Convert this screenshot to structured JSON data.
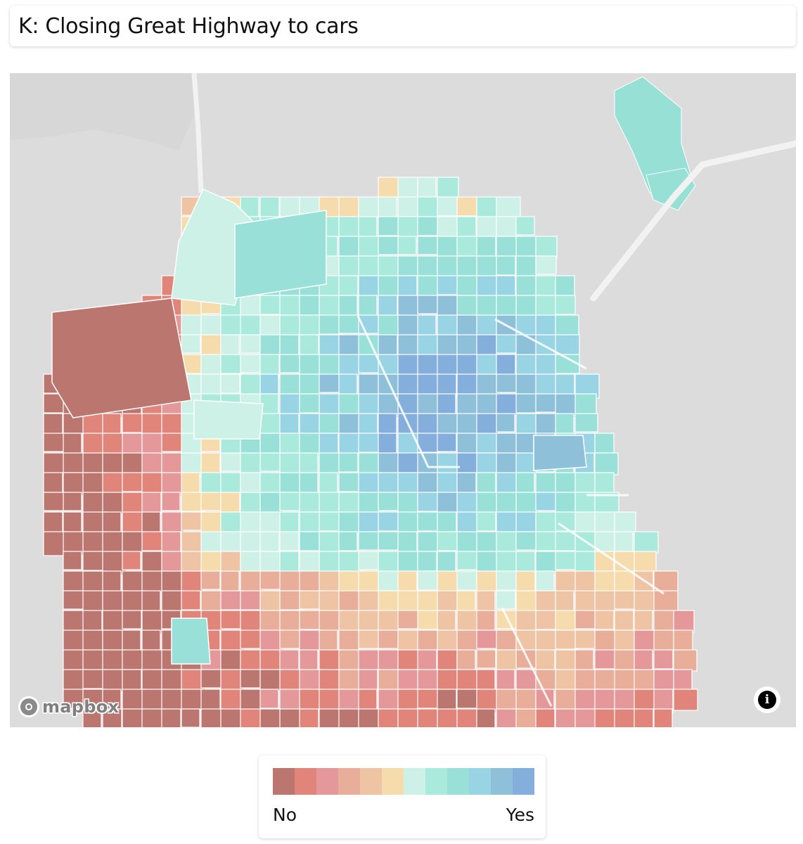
{
  "title": "K: Closing Great Highway to cars",
  "map": {
    "attribution_logo": "mapbox",
    "info_icon": "info-icon",
    "info_glyph": "i",
    "land_color": "#e3e3e3",
    "water_color": "#d6d6d6",
    "road_color": "#ffffff"
  },
  "legend": {
    "min_label": "No",
    "max_label": "Yes",
    "colors": [
      "#bc7670",
      "#e1857b",
      "#e4989a",
      "#e9ae99",
      "#efc4a5",
      "#f6dcac",
      "#cdf1e6",
      "#a9eadc",
      "#99e1d8",
      "#98d4e3",
      "#8fc0da",
      "#84aedb"
    ]
  }
}
